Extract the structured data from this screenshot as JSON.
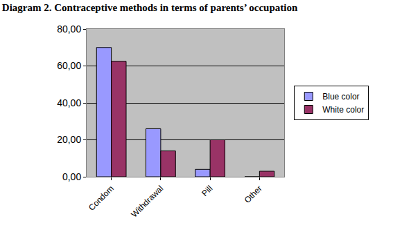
{
  "chart_data": {
    "type": "bar",
    "title": "Diagram 2. Contraceptive methods in terms of parents’ occupation",
    "categories": [
      "Condom",
      "Withdrawal",
      "Pill",
      "Other"
    ],
    "series": [
      {
        "name": "Blue color",
        "color": "#9999ff",
        "values": [
          70,
          26,
          4,
          0
        ]
      },
      {
        "name": "White color",
        "color": "#993366",
        "values": [
          62.5,
          14,
          20,
          3
        ]
      }
    ],
    "ylim": [
      0,
      80
    ],
    "yticks": [
      {
        "value": 0,
        "label": "0,00"
      },
      {
        "value": 20,
        "label": "20,00"
      },
      {
        "value": 40,
        "label": "40,00"
      },
      {
        "value": 60,
        "label": "60,00"
      },
      {
        "value": 80,
        "label": "80,00"
      }
    ],
    "grid": true,
    "legend": "right"
  }
}
